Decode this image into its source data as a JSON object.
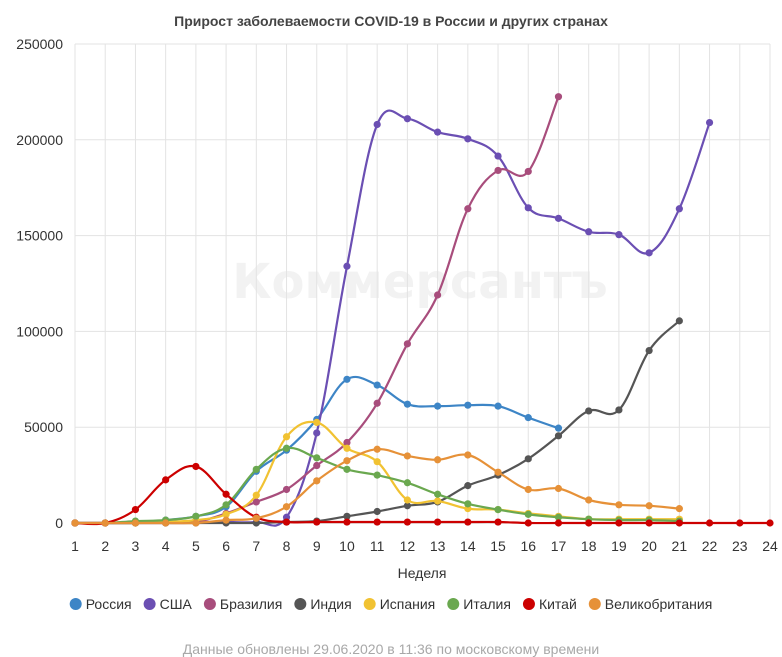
{
  "watermark": "Коммерсантъ",
  "footer": "Данные обновлены 29.06.2020 в 11:36 по московскому времени",
  "chart_data": {
    "type": "line",
    "title": "Прирост заболеваемости COVID-19 в России и других странах",
    "xlabel": "Неделя",
    "ylabel": "",
    "x": [
      1,
      2,
      3,
      4,
      5,
      6,
      7,
      8,
      9,
      10,
      11,
      12,
      13,
      14,
      15,
      16,
      17,
      18,
      19,
      20,
      21,
      22,
      23,
      24
    ],
    "x_ticks": [
      "1",
      "2",
      "3",
      "4",
      "5",
      "6",
      "7",
      "8",
      "9",
      "10",
      "11",
      "12",
      "13",
      "14",
      "15",
      "16",
      "17",
      "18",
      "19",
      "20",
      "21",
      "22",
      "23",
      "24"
    ],
    "ylim": [
      0,
      250000
    ],
    "y_ticks": [
      0,
      50000,
      100000,
      150000,
      200000,
      250000
    ],
    "y_tick_labels": [
      "0",
      "50000",
      "100000",
      "150000",
      "200000",
      "250000"
    ],
    "grid": true,
    "legend_position": "bottom",
    "series": [
      {
        "name": "Россия",
        "color": "#3d85c6",
        "values": [
          0,
          0,
          0,
          1500,
          3500,
          8500,
          27000,
          38000,
          54000,
          75000,
          72000,
          62000,
          61000,
          61500,
          61000,
          55000,
          49500,
          null,
          null,
          null,
          null,
          null,
          null,
          null
        ]
      },
      {
        "name": "США",
        "color": "#6b4fb3",
        "values": [
          0,
          0,
          0,
          500,
          500,
          500,
          500,
          3000,
          47000,
          134000,
          208000,
          211000,
          204000,
          200500,
          191500,
          164500,
          159000,
          152000,
          150500,
          141000,
          164000,
          209000,
          null,
          null
        ]
      },
      {
        "name": "Бразилия",
        "color": "#a84d7c",
        "values": [
          0,
          0,
          0,
          0,
          500,
          5000,
          11000,
          17500,
          30000,
          42000,
          62500,
          93500,
          119000,
          164000,
          184000,
          183500,
          222500,
          null,
          null,
          null,
          null,
          null,
          null,
          null
        ]
      },
      {
        "name": "Индия",
        "color": "#555555",
        "values": [
          0,
          0,
          0,
          0,
          0,
          0,
          0,
          500,
          1000,
          3500,
          6000,
          9000,
          11000,
          19500,
          25000,
          33500,
          45500,
          58500,
          59000,
          90000,
          105500,
          null,
          null,
          null
        ]
      },
      {
        "name": "Испания",
        "color": "#f1c232",
        "values": [
          0,
          0,
          0,
          500,
          1500,
          4500,
          14500,
          45000,
          52500,
          39000,
          32000,
          12000,
          11500,
          7500,
          7000,
          5000,
          3500,
          2000,
          2000,
          2000,
          2000,
          null,
          null,
          null
        ]
      },
      {
        "name": "Италия",
        "color": "#6aa84f",
        "values": [
          0,
          0,
          1000,
          1500,
          3500,
          9500,
          28000,
          39000,
          34000,
          28000,
          25000,
          21000,
          15000,
          10000,
          7000,
          4500,
          3000,
          2000,
          1500,
          1500,
          1000,
          null,
          null,
          null
        ]
      },
      {
        "name": "Китай",
        "color": "#cc0000",
        "values": [
          0,
          0,
          7000,
          22500,
          29500,
          15000,
          3000,
          500,
          500,
          500,
          500,
          500,
          500,
          500,
          500,
          0,
          0,
          0,
          0,
          0,
          0,
          0,
          0,
          0
        ]
      },
      {
        "name": "Великобритания",
        "color": "#e69138",
        "values": [
          0,
          0,
          0,
          0,
          0,
          1500,
          2500,
          8500,
          22000,
          32500,
          38500,
          35000,
          33000,
          35500,
          26500,
          17500,
          18000,
          12000,
          9500,
          9000,
          7500,
          null,
          null,
          null
        ]
      }
    ]
  }
}
